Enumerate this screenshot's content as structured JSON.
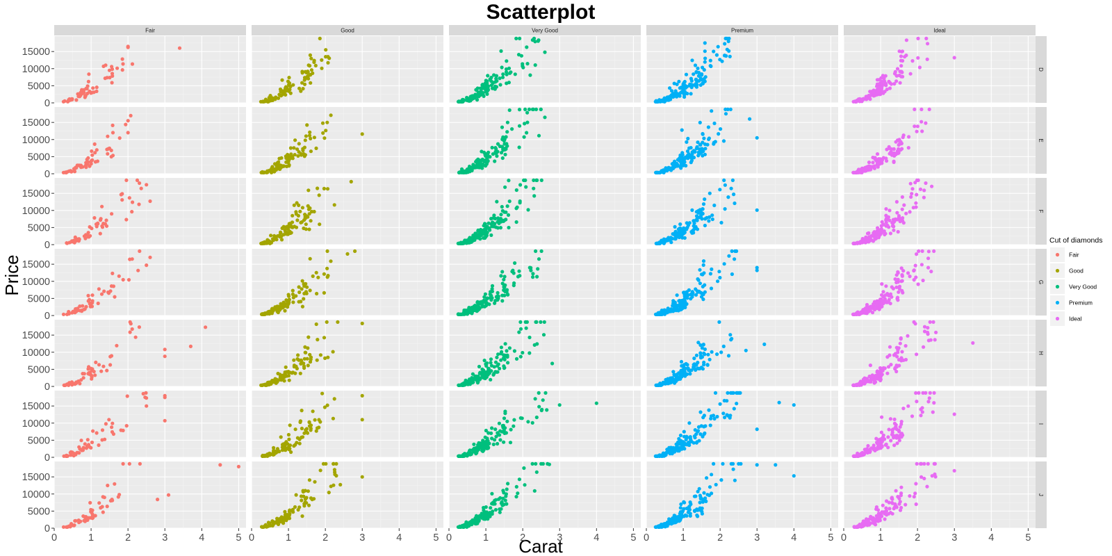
{
  "chart_data": {
    "type": "scatter",
    "title": "Scatterplot",
    "xlabel": "Carat",
    "ylabel": "Price",
    "xlim": [
      0,
      5.2
    ],
    "ylim": [
      0,
      19500
    ],
    "x_ticks": [
      0,
      1,
      2,
      3,
      4,
      5
    ],
    "x_tick_labels": [
      "0",
      "1",
      "2",
      "3",
      "4",
      "5"
    ],
    "y_ticks": [
      0,
      5000,
      10000,
      15000
    ],
    "y_tick_labels": [
      "0",
      "5000",
      "10000",
      "15000"
    ],
    "facet_cols": [
      "Fair",
      "Good",
      "Very Good",
      "Premium",
      "Ideal"
    ],
    "facet_rows": [
      "D",
      "E",
      "F",
      "G",
      "H",
      "I",
      "J"
    ],
    "legend": {
      "title": "Cut of diamonds",
      "placement": "right",
      "entries": [
        {
          "label": "Fair",
          "color": "#F8766D"
        },
        {
          "label": "Good",
          "color": "#A3A500"
        },
        {
          "label": "Very Good",
          "color": "#00BF7D"
        },
        {
          "label": "Premium",
          "color": "#00B0F6"
        },
        {
          "label": "Ideal",
          "color": "#E76BF3"
        }
      ]
    },
    "panel_background": "#EBEBEB",
    "strip_background": "#D9D9D9",
    "curve_model": "price ≈ 4200 · carat^1.75 (noise band), points truncated at 18800",
    "outliers": [
      {
        "cut": "Fair",
        "color_grade": "D",
        "points": [
          [
            3.4,
            16000
          ],
          [
            2.0,
            16200
          ],
          [
            2.0,
            16500
          ]
        ]
      },
      {
        "cut": "Fair",
        "color_grade": "E",
        "points": [
          [
            2.0,
            15500
          ],
          [
            2.0,
            12000
          ]
        ]
      },
      {
        "cut": "Fair",
        "color_grade": "F",
        "points": [
          [
            2.5,
            17500
          ],
          [
            2.6,
            12700
          ]
        ]
      },
      {
        "cut": "Fair",
        "color_grade": "G",
        "points": [
          [
            2.6,
            17000
          ],
          [
            2.5,
            14700
          ]
        ]
      },
      {
        "cut": "Fair",
        "color_grade": "H",
        "points": [
          [
            4.1,
            17300
          ],
          [
            3.7,
            11700
          ],
          [
            3.0,
            10800
          ],
          [
            3.0,
            8800
          ]
        ]
      },
      {
        "cut": "Fair",
        "color_grade": "I",
        "points": [
          [
            3.0,
            18000
          ],
          [
            3.0,
            17500
          ],
          [
            3.0,
            10700
          ],
          [
            2.5,
            15000
          ]
        ]
      },
      {
        "cut": "Fair",
        "color_grade": "J",
        "points": [
          [
            4.5,
            18500
          ],
          [
            5.0,
            18000
          ],
          [
            3.1,
            9700
          ],
          [
            2.8,
            8400
          ]
        ]
      },
      {
        "cut": "Good",
        "color_grade": "E",
        "points": [
          [
            3.0,
            11600
          ]
        ]
      },
      {
        "cut": "Good",
        "color_grade": "F",
        "points": [
          [
            2.7,
            18400
          ]
        ]
      },
      {
        "cut": "Good",
        "color_grade": "G",
        "points": [
          [
            2.8,
            18800
          ],
          [
            2.6,
            18000
          ]
        ]
      },
      {
        "cut": "Good",
        "color_grade": "H",
        "points": [
          [
            3.0,
            18400
          ]
        ]
      },
      {
        "cut": "Good",
        "color_grade": "I",
        "points": [
          [
            3.0,
            18000
          ],
          [
            3.0,
            11000
          ]
        ]
      },
      {
        "cut": "Good",
        "color_grade": "J",
        "points": [
          [
            3.0,
            15000
          ]
        ]
      },
      {
        "cut": "Very Good",
        "color_grade": "D",
        "points": [
          [
            2.6,
            14800
          ]
        ]
      },
      {
        "cut": "Very Good",
        "color_grade": "E",
        "points": [
          [
            2.6,
            16500
          ]
        ]
      },
      {
        "cut": "Very Good",
        "color_grade": "H",
        "points": [
          [
            2.8,
            6700
          ]
        ]
      },
      {
        "cut": "Very Good",
        "color_grade": "I",
        "points": [
          [
            4.0,
            15800
          ],
          [
            3.0,
            15300
          ]
        ]
      },
      {
        "cut": "Premium",
        "color_grade": "E",
        "points": [
          [
            3.0,
            10500
          ],
          [
            2.8,
            16000
          ]
        ]
      },
      {
        "cut": "Premium",
        "color_grade": "F",
        "points": [
          [
            3.0,
            10100
          ]
        ]
      },
      {
        "cut": "Premium",
        "color_grade": "G",
        "points": [
          [
            3.0,
            14000
          ],
          [
            3.0,
            13200
          ]
        ]
      },
      {
        "cut": "Premium",
        "color_grade": "H",
        "points": [
          [
            3.2,
            12300
          ],
          [
            2.7,
            10500
          ]
        ]
      },
      {
        "cut": "Premium",
        "color_grade": "I",
        "points": [
          [
            3.6,
            16000
          ],
          [
            4.0,
            15300
          ],
          [
            3.0,
            8200
          ]
        ]
      },
      {
        "cut": "Premium",
        "color_grade": "J",
        "points": [
          [
            3.0,
            18500
          ],
          [
            3.5,
            18500
          ],
          [
            4.0,
            15300
          ]
        ]
      },
      {
        "cut": "Ideal",
        "color_grade": "D",
        "points": [
          [
            3.0,
            13200
          ]
        ]
      },
      {
        "cut": "Ideal",
        "color_grade": "H",
        "points": [
          [
            3.5,
            12700
          ]
        ]
      },
      {
        "cut": "Ideal",
        "color_grade": "I",
        "points": [
          [
            3.0,
            12600
          ]
        ]
      },
      {
        "cut": "Ideal",
        "color_grade": "J",
        "points": [
          [
            3.0,
            16800
          ]
        ]
      }
    ]
  }
}
